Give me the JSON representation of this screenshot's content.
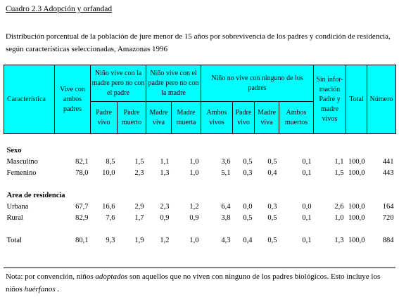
{
  "title": "Cuadro 2.3  Adopción y orfandad",
  "intro": "Distribución porcentual de la población de jure menor de 15 años por sobrevivencia de los padres y condición de residencia, según características seleccionadas, Amazonas 1996",
  "header": {
    "caracteristica": "Característica",
    "vive_ambos": "Vive con ambos padres",
    "group_madre": "Niño vive con la madre pero no con el padre",
    "padre_vivo": "Padre vivo",
    "padre_muerto": "Padre muerto",
    "group_padre": "Niño vive con el padre pero no con la madre",
    "madre_viva": "Madre viva",
    "madre_muerta": "Madre muerta",
    "group_ninguno": "Niño no vive con ninguno de los padres",
    "ambos_vivos": "Ambos vivos",
    "padre_vivo2": "Padre vivo",
    "madre_viva2": "Madre viva",
    "ambos_muertos": "Ambos muertos",
    "sin_info": "Sin infor- mación Padre y madre vivos",
    "total": "Total",
    "numero": "Número"
  },
  "sections": [
    {
      "label": "Sexo",
      "rows": [
        {
          "label": "Masculino",
          "values": [
            "82,1",
            "8,5",
            "1,5",
            "1,1",
            "1,0",
            "3,6",
            "0,5",
            "0,5",
            "0,1",
            "1,1",
            "100,0",
            "441"
          ]
        },
        {
          "label": "Femenino",
          "values": [
            "78,0",
            "10,0",
            "2,3",
            "1,3",
            "1,0",
            "5,1",
            "0,3",
            "0,4",
            "0,1",
            "1,5",
            "100,0",
            "443"
          ]
        }
      ]
    },
    {
      "label": "Area de residencia",
      "rows": [
        {
          "label": "Urbana",
          "values": [
            "67,7",
            "16,6",
            "2,9",
            "2,3",
            "1,2",
            "6,4",
            "0,0",
            "0,3",
            "0,0",
            "2,6",
            "100,0",
            "164"
          ]
        },
        {
          "label": "Rural",
          "values": [
            "82,9",
            "7,6",
            "1,7",
            "0,9",
            "0,9",
            "3,8",
            "0,5",
            "0,5",
            "0,1",
            "1,0",
            "100,0",
            "720"
          ]
        }
      ]
    }
  ],
  "total_row": {
    "label": "Total",
    "values": [
      "80,1",
      "9,3",
      "1,9",
      "1,2",
      "1,0",
      "4,3",
      "0,4",
      "0,5",
      "0,1",
      "1,3",
      "100,0",
      "884"
    ]
  },
  "note": {
    "part1": "Nota: por convención, niños ",
    "adoptados": "adoptados",
    "part2": " son aquellos que no viven con ninguno de los padres biológicos. Esto incluye los niños ",
    "huerfanos": "huérfanos",
    "part3": " ."
  },
  "colors": {
    "header_bg": "#00ffff"
  }
}
